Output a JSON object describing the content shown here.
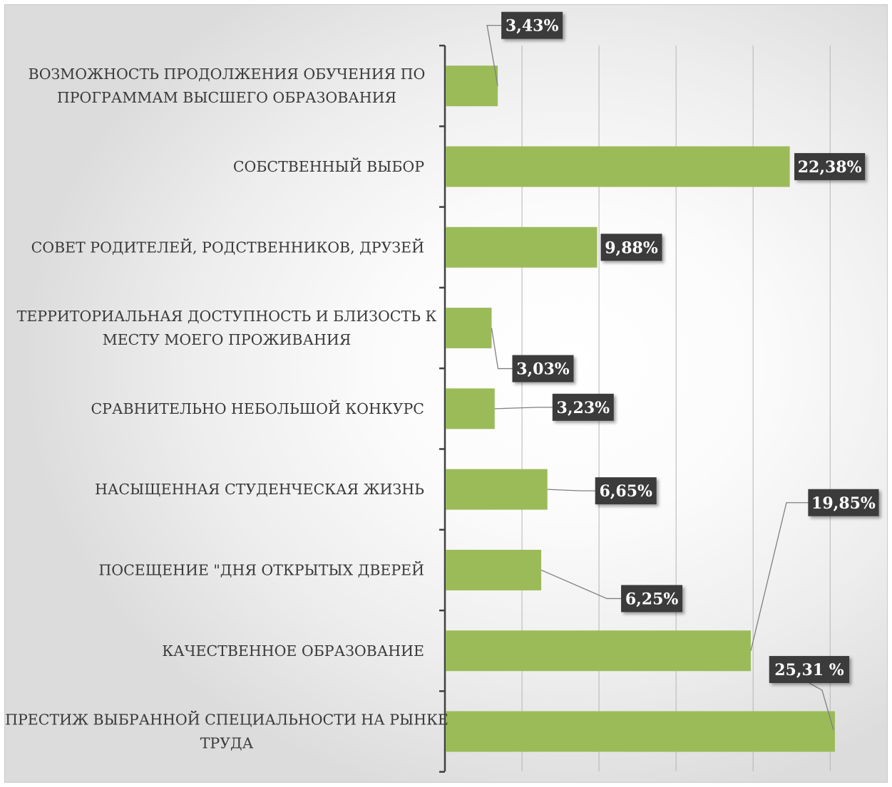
{
  "chart_data": {
    "type": "bar",
    "orientation": "horizontal",
    "categories": [
      [
        "ВОЗМОЖНОСТЬ ПРОДОЛЖЕНИЯ ОБУЧЕНИЯ ПО",
        "ПРОГРАММАМ ВЫСШЕГО ОБРАЗОВАНИЯ"
      ],
      [
        "СОБСТВЕННЫЙ ВЫБОР"
      ],
      [
        "СОВЕТ РОДИТЕЛЕЙ, РОДСТВЕННИКОВ, ДРУЗЕЙ"
      ],
      [
        "ТЕРРИТОРИАЛЬНАЯ ДОСТУПНОСТЬ И БЛИЗОСТЬ К",
        "МЕСТУ МОЕГО ПРОЖИВАНИЯ"
      ],
      [
        "СРАВНИТЕЛЬНО НЕБОЛЬШОЙ КОНКУРС"
      ],
      [
        "НАСЫЩЕННАЯ СТУДЕНЧЕСКАЯ ЖИЗНЬ"
      ],
      [
        "ПОСЕЩЕНИЕ \"ДНЯ ОТКРЫТЫХ ДВЕРЕЙ"
      ],
      [
        "КАЧЕСТВЕННОЕ ОБРАЗОВАНИЕ"
      ],
      [
        "ПРЕСТИЖ ВЫБРАННОЙ СПЕЦИАЛЬНОСТИ НА РЫНКЕ",
        "ТРУДА"
      ]
    ],
    "values": [
      3.43,
      22.38,
      9.88,
      3.03,
      3.23,
      6.65,
      6.25,
      19.85,
      25.31
    ],
    "data_labels": [
      "3,43%",
      "22,38%",
      "9,88%",
      "3,03%",
      "3,23%",
      "6,65%",
      "6,25%",
      "19,85%",
      "25,31 %"
    ],
    "xlim": [
      0,
      29
    ],
    "grid": true,
    "legend": "none",
    "bar_color": "#9bbb59",
    "label_box_color": "#3b3b3b",
    "label_text_color": "#ffffff",
    "gridline_color": "#b5b5b5",
    "axis_color": "#404040"
  }
}
